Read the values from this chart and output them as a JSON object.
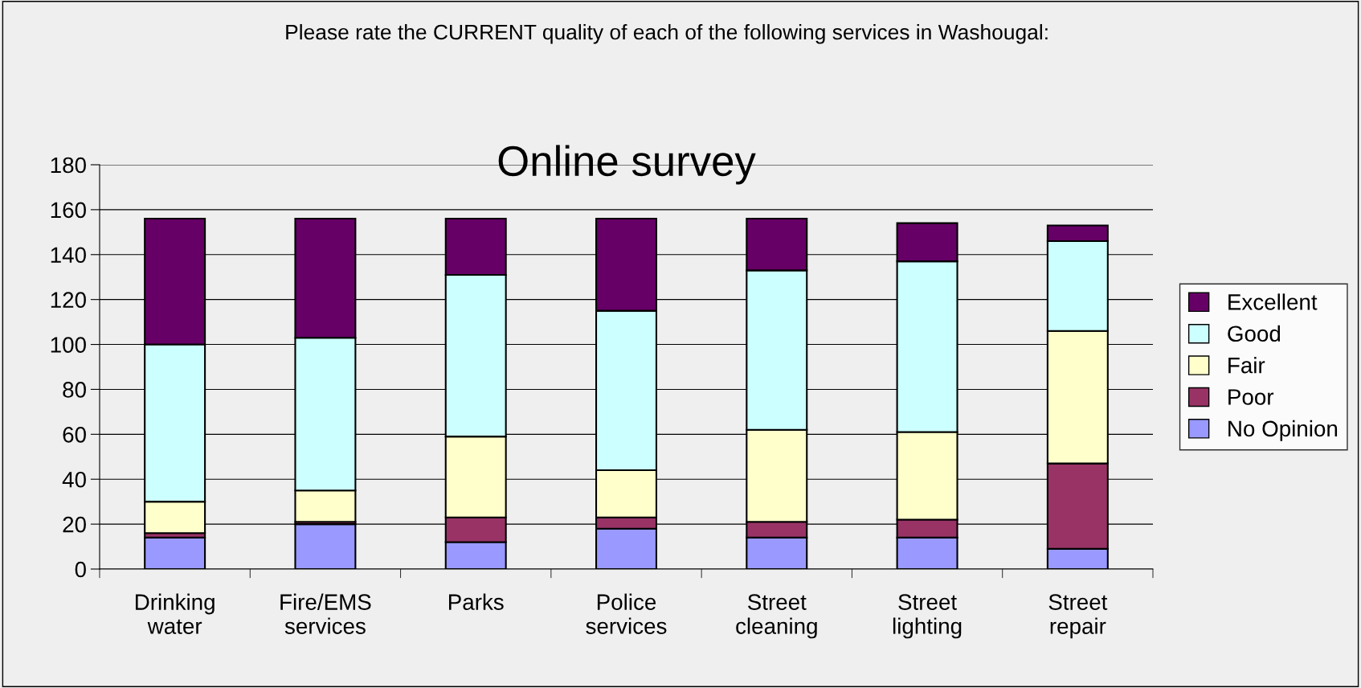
{
  "chart_data": {
    "type": "bar",
    "stacked": true,
    "title": "Please rate the CURRENT quality of each of the following services in Washougal:",
    "subtitle": "Online survey",
    "categories": [
      "Drinking\nwater",
      "Fire/EMS\nservices",
      "Parks",
      "Police\nservices",
      "Street\ncleaning",
      "Street\nlighting",
      "Street\nrepair"
    ],
    "series": [
      {
        "name": "No Opinion",
        "color": "#9999ff",
        "values": [
          14,
          20,
          12,
          18,
          14,
          14,
          9
        ]
      },
      {
        "name": "Poor",
        "color": "#993366",
        "values": [
          2,
          1,
          11,
          5,
          7,
          8,
          38
        ]
      },
      {
        "name": "Fair",
        "color": "#ffffcc",
        "values": [
          14,
          14,
          36,
          21,
          41,
          39,
          59
        ]
      },
      {
        "name": "Good",
        "color": "#ccffff",
        "values": [
          70,
          68,
          72,
          71,
          71,
          76,
          40
        ]
      },
      {
        "name": "Excellent",
        "color": "#660066",
        "values": [
          56,
          53,
          25,
          41,
          23,
          17,
          7
        ]
      }
    ],
    "ylim": [
      0,
      180
    ],
    "yticks": [
      0,
      20,
      40,
      60,
      80,
      100,
      120,
      140,
      160,
      180
    ],
    "grid": "y",
    "legend": "right"
  }
}
